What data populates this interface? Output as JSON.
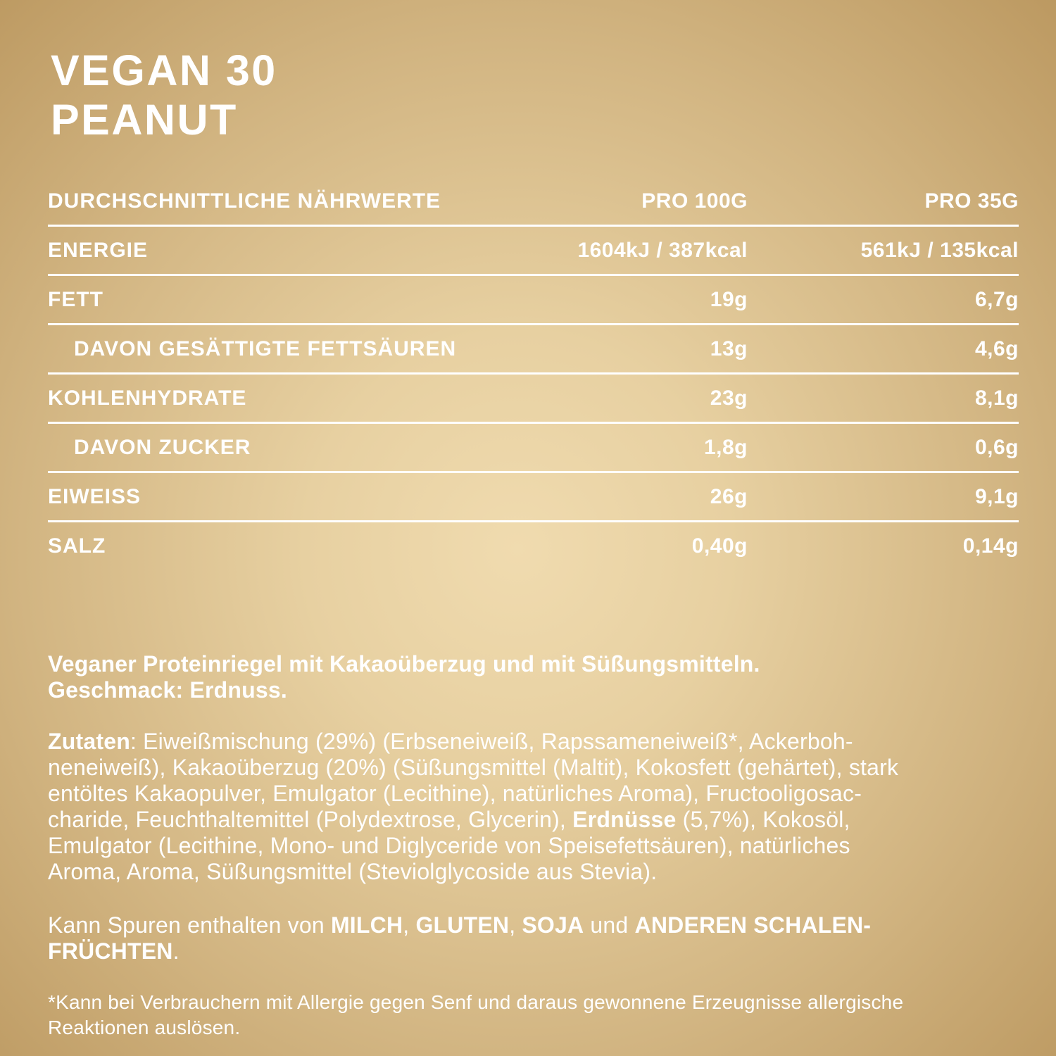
{
  "title": {
    "line1": "VEGAN 30",
    "line2": "PEANUT"
  },
  "nutrition_table": {
    "header": {
      "label": "DURCHSCHNITTLICHE NÄHRWERTE",
      "col_100g": "PRO 100G",
      "col_35g": "PRO 35G"
    },
    "rows": [
      {
        "label": "ENERGIE",
        "per100g": "1604kJ / 387kcal",
        "per35g": "561kJ / 135kcal",
        "indent": false
      },
      {
        "label": "FETT",
        "per100g": "19g",
        "per35g": "6,7g",
        "indent": false
      },
      {
        "label": "DAVON GESÄTTIGTE FETTSÄUREN",
        "per100g": "13g",
        "per35g": "4,6g",
        "indent": true
      },
      {
        "label": "KOHLENHYDRATE",
        "per100g": "23g",
        "per35g": "8,1g",
        "indent": false
      },
      {
        "label": "DAVON ZUCKER",
        "per100g": "1,8g",
        "per35g": "0,6g",
        "indent": true
      },
      {
        "label": "EIWEISS",
        "per100g": "26g",
        "per35g": "9,1g",
        "indent": false
      },
      {
        "label": "SALZ",
        "per100g": "0,40g",
        "per35g": "0,14g",
        "indent": false
      }
    ]
  },
  "description": {
    "lines": [
      [
        {
          "t": "Veganer Proteinriegel mit Kakaoüberzug und mit Süßungsmitteln.",
          "b": true
        }
      ],
      [
        {
          "t": "Geschmack: Erdnuss.",
          "b": true
        }
      ]
    ]
  },
  "ingredients": {
    "lines": [
      [
        {
          "t": "Zutaten",
          "b": true
        },
        {
          "t": ": Eiweißmischung (29%) (Erbseneiweiß, Rapssameneiweiß*, Ackerboh-",
          "b": false
        }
      ],
      [
        {
          "t": "neneiweiß), Kakaoüberzug (20%) (Süßungsmittel (Maltit), Kokosfett (gehärtet), stark",
          "b": false
        }
      ],
      [
        {
          "t": "entöltes Kakaopulver, Emulgator (Lecithine), natürliches Aroma), Fructooligosac-",
          "b": false
        }
      ],
      [
        {
          "t": "charide, Feuchthaltemittel (Polydextrose, Glycerin), ",
          "b": false
        },
        {
          "t": "Erdnüsse",
          "b": true
        },
        {
          "t": " (5,7%), Kokosöl,",
          "b": false
        }
      ],
      [
        {
          "t": "Emulgator (Lecithine, Mono- und Diglyceride von Speisefettsäuren), natürliches",
          "b": false
        }
      ],
      [
        {
          "t": "Aroma, Aroma, Süßungsmittel (Steviolglycoside aus Stevia).",
          "b": false
        }
      ]
    ]
  },
  "allergens": {
    "lines": [
      [
        {
          "t": "Kann Spuren enthalten von ",
          "b": false
        },
        {
          "t": "MILCH",
          "b": true
        },
        {
          "t": ", ",
          "b": false
        },
        {
          "t": "GLUTEN",
          "b": true
        },
        {
          "t": ", ",
          "b": false
        },
        {
          "t": "SOJA",
          "b": true
        },
        {
          "t": " und ",
          "b": false
        },
        {
          "t": "ANDEREN SCHALEN-",
          "b": true
        }
      ],
      [
        {
          "t": "FRÜCHTEN",
          "b": true
        },
        {
          "t": ".",
          "b": false
        }
      ]
    ]
  },
  "footnote": {
    "lines": [
      [
        {
          "t": "*Kann bei Verbrauchern mit Allergie gegen Senf und daraus gewonnene Erzeugnisse allergische",
          "b": false
        }
      ],
      [
        {
          "t": "Reaktionen auslösen.",
          "b": false
        }
      ]
    ]
  },
  "colors": {
    "background_center": "#f0dbaf",
    "background_edge": "#bc9961",
    "text": "#ffffff"
  }
}
